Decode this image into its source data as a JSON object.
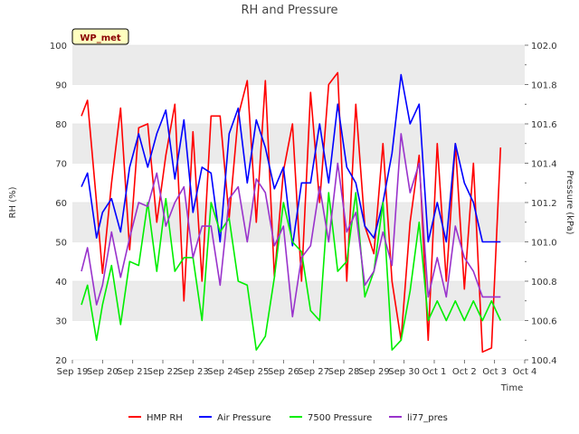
{
  "colors": {
    "hmp_rh": "#ff0000",
    "air_pressure": "#0000ff",
    "pressure_7500": "#00ee00",
    "li77_pres": "#9933cc",
    "band": "#ebebeb",
    "badge_bg": "#ffffc0"
  },
  "chart_data": {
    "type": "line",
    "title": "RH and Pressure",
    "badge": "WP_met",
    "xlabel": "Time",
    "ylabel_left": "RH (%)",
    "ylabel_right": "Pressure (kPa)",
    "x_range": [
      "2024-09-19",
      "2024-10-04"
    ],
    "xticks": [
      "Sep 19",
      "Sep 20",
      "Sep 21",
      "Sep 22",
      "Sep 23",
      "Sep 24",
      "Sep 25",
      "Sep 26",
      "Sep 27",
      "Sep 28",
      "Sep 29",
      "Sep 30",
      "Oct 1",
      "Oct 2",
      "Oct 3",
      "Oct 4"
    ],
    "ylim_left": [
      20,
      100
    ],
    "yticks_left": [
      "20",
      "30",
      "40",
      "50",
      "60",
      "70",
      "80",
      "90",
      "100"
    ],
    "ylim_right": [
      100.4,
      102.0
    ],
    "yticks_right": [
      "100.4",
      "100.6",
      "100.8",
      "101.0",
      "101.2",
      "101.4",
      "101.6",
      "101.8",
      "102.0"
    ],
    "grid": "horizontal bands",
    "legend_position": "bottom",
    "x_days": [
      0.3,
      0.5,
      0.8,
      1.0,
      1.3,
      1.6,
      1.9,
      2.2,
      2.5,
      2.8,
      3.1,
      3.4,
      3.7,
      4.0,
      4.3,
      4.6,
      4.9,
      5.2,
      5.5,
      5.8,
      6.1,
      6.4,
      6.7,
      7.0,
      7.3,
      7.6,
      7.9,
      8.2,
      8.5,
      8.8,
      9.1,
      9.4,
      9.7,
      10.0,
      10.3,
      10.6,
      10.9,
      11.2,
      11.5,
      11.8,
      12.1,
      12.4,
      12.7,
      13.0,
      13.3,
      13.6,
      13.9,
      14.2
    ],
    "series": [
      {
        "name": "HMP RH",
        "axis": "left",
        "color_key": "hmp_rh",
        "values": [
          82,
          86,
          60,
          42,
          65,
          84,
          48,
          79,
          80,
          55,
          72,
          85,
          35,
          78,
          40,
          82,
          82,
          56,
          82,
          91,
          55,
          91,
          41,
          68,
          80,
          40,
          88,
          60,
          90,
          93,
          40,
          85,
          54,
          47,
          75,
          40,
          25,
          55,
          72,
          25,
          75,
          40,
          75,
          38,
          70,
          22,
          23,
          74
        ]
      },
      {
        "name": "Air Pressure",
        "axis": "right",
        "color_key": "air_pressure",
        "values": [
          101.28,
          101.35,
          101.02,
          101.15,
          101.22,
          101.05,
          101.38,
          101.55,
          101.38,
          101.55,
          101.67,
          101.32,
          101.62,
          101.15,
          101.38,
          101.35,
          101.0,
          101.55,
          101.68,
          101.3,
          101.62,
          101.48,
          101.27,
          101.38,
          100.98,
          101.3,
          101.3,
          101.6,
          101.3,
          101.7,
          101.38,
          101.3,
          101.08,
          101.02,
          101.2,
          101.45,
          101.85,
          101.6,
          101.7,
          101.0,
          101.2,
          101.0,
          101.5,
          101.3,
          101.2,
          101.0,
          101.0,
          101.0
        ]
      },
      {
        "name": "7500 Pressure",
        "axis": "right",
        "color_key": "pressure_7500",
        "values": [
          100.68,
          100.78,
          100.5,
          100.68,
          100.88,
          100.58,
          100.9,
          100.88,
          101.2,
          100.85,
          101.22,
          100.85,
          100.92,
          100.92,
          100.6,
          101.2,
          101.05,
          101.12,
          100.8,
          100.78,
          100.45,
          100.52,
          100.82,
          101.2,
          101.0,
          100.95,
          100.65,
          100.6,
          101.25,
          100.85,
          100.9,
          101.25,
          100.72,
          100.85,
          101.2,
          100.45,
          100.5,
          100.75,
          101.1,
          100.6,
          100.7,
          100.6,
          100.7,
          100.6,
          100.7,
          100.6,
          100.7,
          100.6
        ]
      },
      {
        "name": "li77_pres",
        "axis": "right",
        "color_key": "li77_pres",
        "values": [
          100.85,
          100.97,
          100.68,
          100.78,
          101.05,
          100.82,
          101.02,
          101.2,
          101.18,
          101.35,
          101.08,
          101.2,
          101.28,
          100.92,
          101.08,
          101.08,
          100.78,
          101.22,
          101.28,
          101.0,
          101.32,
          101.25,
          100.98,
          101.08,
          100.62,
          100.92,
          100.98,
          101.28,
          101.0,
          101.4,
          101.05,
          101.15,
          100.78,
          100.85,
          101.05,
          100.88,
          101.55,
          101.25,
          101.4,
          100.72,
          100.92,
          100.72,
          101.08,
          100.92,
          100.85,
          100.72,
          100.72,
          100.72
        ]
      }
    ]
  }
}
